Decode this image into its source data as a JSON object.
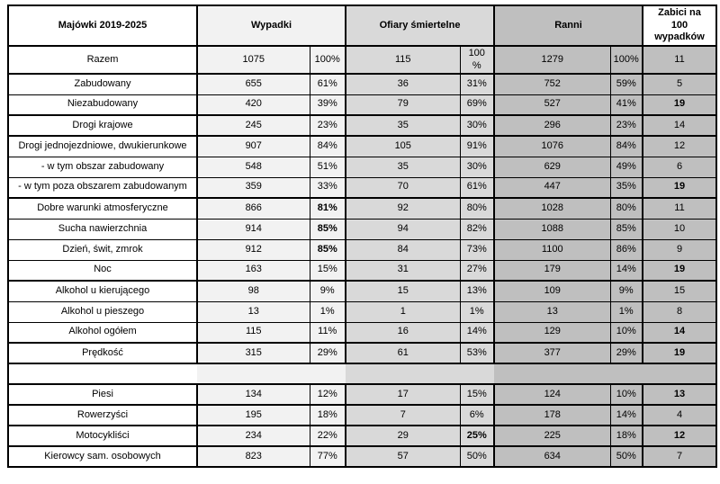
{
  "chart_data": {
    "type": "table",
    "title": "Majówki 2019-2025",
    "headers": {
      "period": "Majówki 2019-2025",
      "accidents": "Wypadki",
      "fatalities": "Ofiary śmiertelne",
      "injured": "Ranni",
      "killed_per_100_accidents": "Zabici na\n100\nwypadków"
    },
    "subcolumns": [
      "count",
      "percent"
    ],
    "rows": [
      {
        "label": "Razem",
        "cells": [
          "1075",
          "100%",
          "115",
          "100\n%",
          "1279",
          "100%",
          "11"
        ],
        "bold": [],
        "sep": "thick",
        "tall": true
      },
      {
        "label": "Zabudowany",
        "cells": [
          "655",
          "61%",
          "36",
          "31%",
          "752",
          "59%",
          "5"
        ],
        "bold": [],
        "sep": "thin"
      },
      {
        "label": "Niezabudowany",
        "cells": [
          "420",
          "39%",
          "79",
          "69%",
          "527",
          "41%",
          "19"
        ],
        "bold": [
          6
        ],
        "sep": "thick"
      },
      {
        "label": "Drogi krajowe",
        "cells": [
          "245",
          "23%",
          "35",
          "30%",
          "296",
          "23%",
          "14"
        ],
        "bold": [],
        "sep": "thick"
      },
      {
        "label": "Drogi jednojezdniowe, dwukierunkowe",
        "cells": [
          "907",
          "84%",
          "105",
          "91%",
          "1076",
          "84%",
          "12"
        ],
        "bold": [],
        "sep": "thin"
      },
      {
        "label": "- w tym obszar zabudowany",
        "cells": [
          "548",
          "51%",
          "35",
          "30%",
          "629",
          "49%",
          "6"
        ],
        "bold": [],
        "sep": "thin"
      },
      {
        "label": "- w tym poza obszarem zabudowanym",
        "cells": [
          "359",
          "33%",
          "70",
          "61%",
          "447",
          "35%",
          "19"
        ],
        "bold": [
          6
        ],
        "sep": "thick"
      },
      {
        "label": "Dobre warunki atmosferyczne",
        "cells": [
          "866",
          "81%",
          "92",
          "80%",
          "1028",
          "80%",
          "11"
        ],
        "bold": [
          1
        ],
        "sep": "thin"
      },
      {
        "label": "Sucha nawierzchnia",
        "cells": [
          "914",
          "85%",
          "94",
          "82%",
          "1088",
          "85%",
          "10"
        ],
        "bold": [
          1
        ],
        "sep": "thin"
      },
      {
        "label": "Dzień, świt, zmrok",
        "cells": [
          "912",
          "85%",
          "84",
          "73%",
          "1100",
          "86%",
          "9"
        ],
        "bold": [
          1
        ],
        "sep": "thin"
      },
      {
        "label": "Noc",
        "cells": [
          "163",
          "15%",
          "31",
          "27%",
          "179",
          "14%",
          "19"
        ],
        "bold": [
          6
        ],
        "sep": "thick"
      },
      {
        "label": "Alkohol u kierującego",
        "cells": [
          "98",
          "9%",
          "15",
          "13%",
          "109",
          "9%",
          "15"
        ],
        "bold": [],
        "sep": "thin"
      },
      {
        "label": "Alkohol u pieszego",
        "cells": [
          "13",
          "1%",
          "1",
          "1%",
          "13",
          "1%",
          "8"
        ],
        "bold": [],
        "sep": "thin"
      },
      {
        "label": "Alkohol ogółem",
        "cells": [
          "115",
          "11%",
          "16",
          "14%",
          "129",
          "10%",
          "14"
        ],
        "bold": [
          6
        ],
        "sep": "thick"
      },
      {
        "label": "Prędkość",
        "cells": [
          "315",
          "29%",
          "61",
          "53%",
          "377",
          "29%",
          "19"
        ],
        "bold": [
          6
        ],
        "sep": "thick"
      },
      {
        "label": "",
        "cells": [
          "",
          "",
          "",
          "",
          "",
          "",
          ""
        ],
        "bold": [],
        "sep": "thick",
        "empty": true
      },
      {
        "label": "Piesi",
        "cells": [
          "134",
          "12%",
          "17",
          "15%",
          "124",
          "10%",
          "13"
        ],
        "bold": [
          6
        ],
        "sep": "thick"
      },
      {
        "label": "Rowerzyści",
        "cells": [
          "195",
          "18%",
          "7",
          "6%",
          "178",
          "14%",
          "4"
        ],
        "bold": [],
        "sep": "thick"
      },
      {
        "label": "Motocykliści",
        "cells": [
          "234",
          "22%",
          "29",
          "25%",
          "225",
          "18%",
          "12"
        ],
        "bold": [
          3,
          6
        ],
        "sep": "thick"
      },
      {
        "label": "Kierowcy sam. osobowych",
        "cells": [
          "823",
          "77%",
          "57",
          "50%",
          "634",
          "50%",
          "7"
        ],
        "bold": [],
        "sep": "thick"
      }
    ]
  },
  "colors": {
    "accidents_column_bg": "#F2F2F2",
    "fatalities_column_bg": "#D9D9D9",
    "injured_column_bg": "#BFBFBF",
    "border": "#000000",
    "text": "#000000",
    "page_bg": "#FFFFFF"
  }
}
